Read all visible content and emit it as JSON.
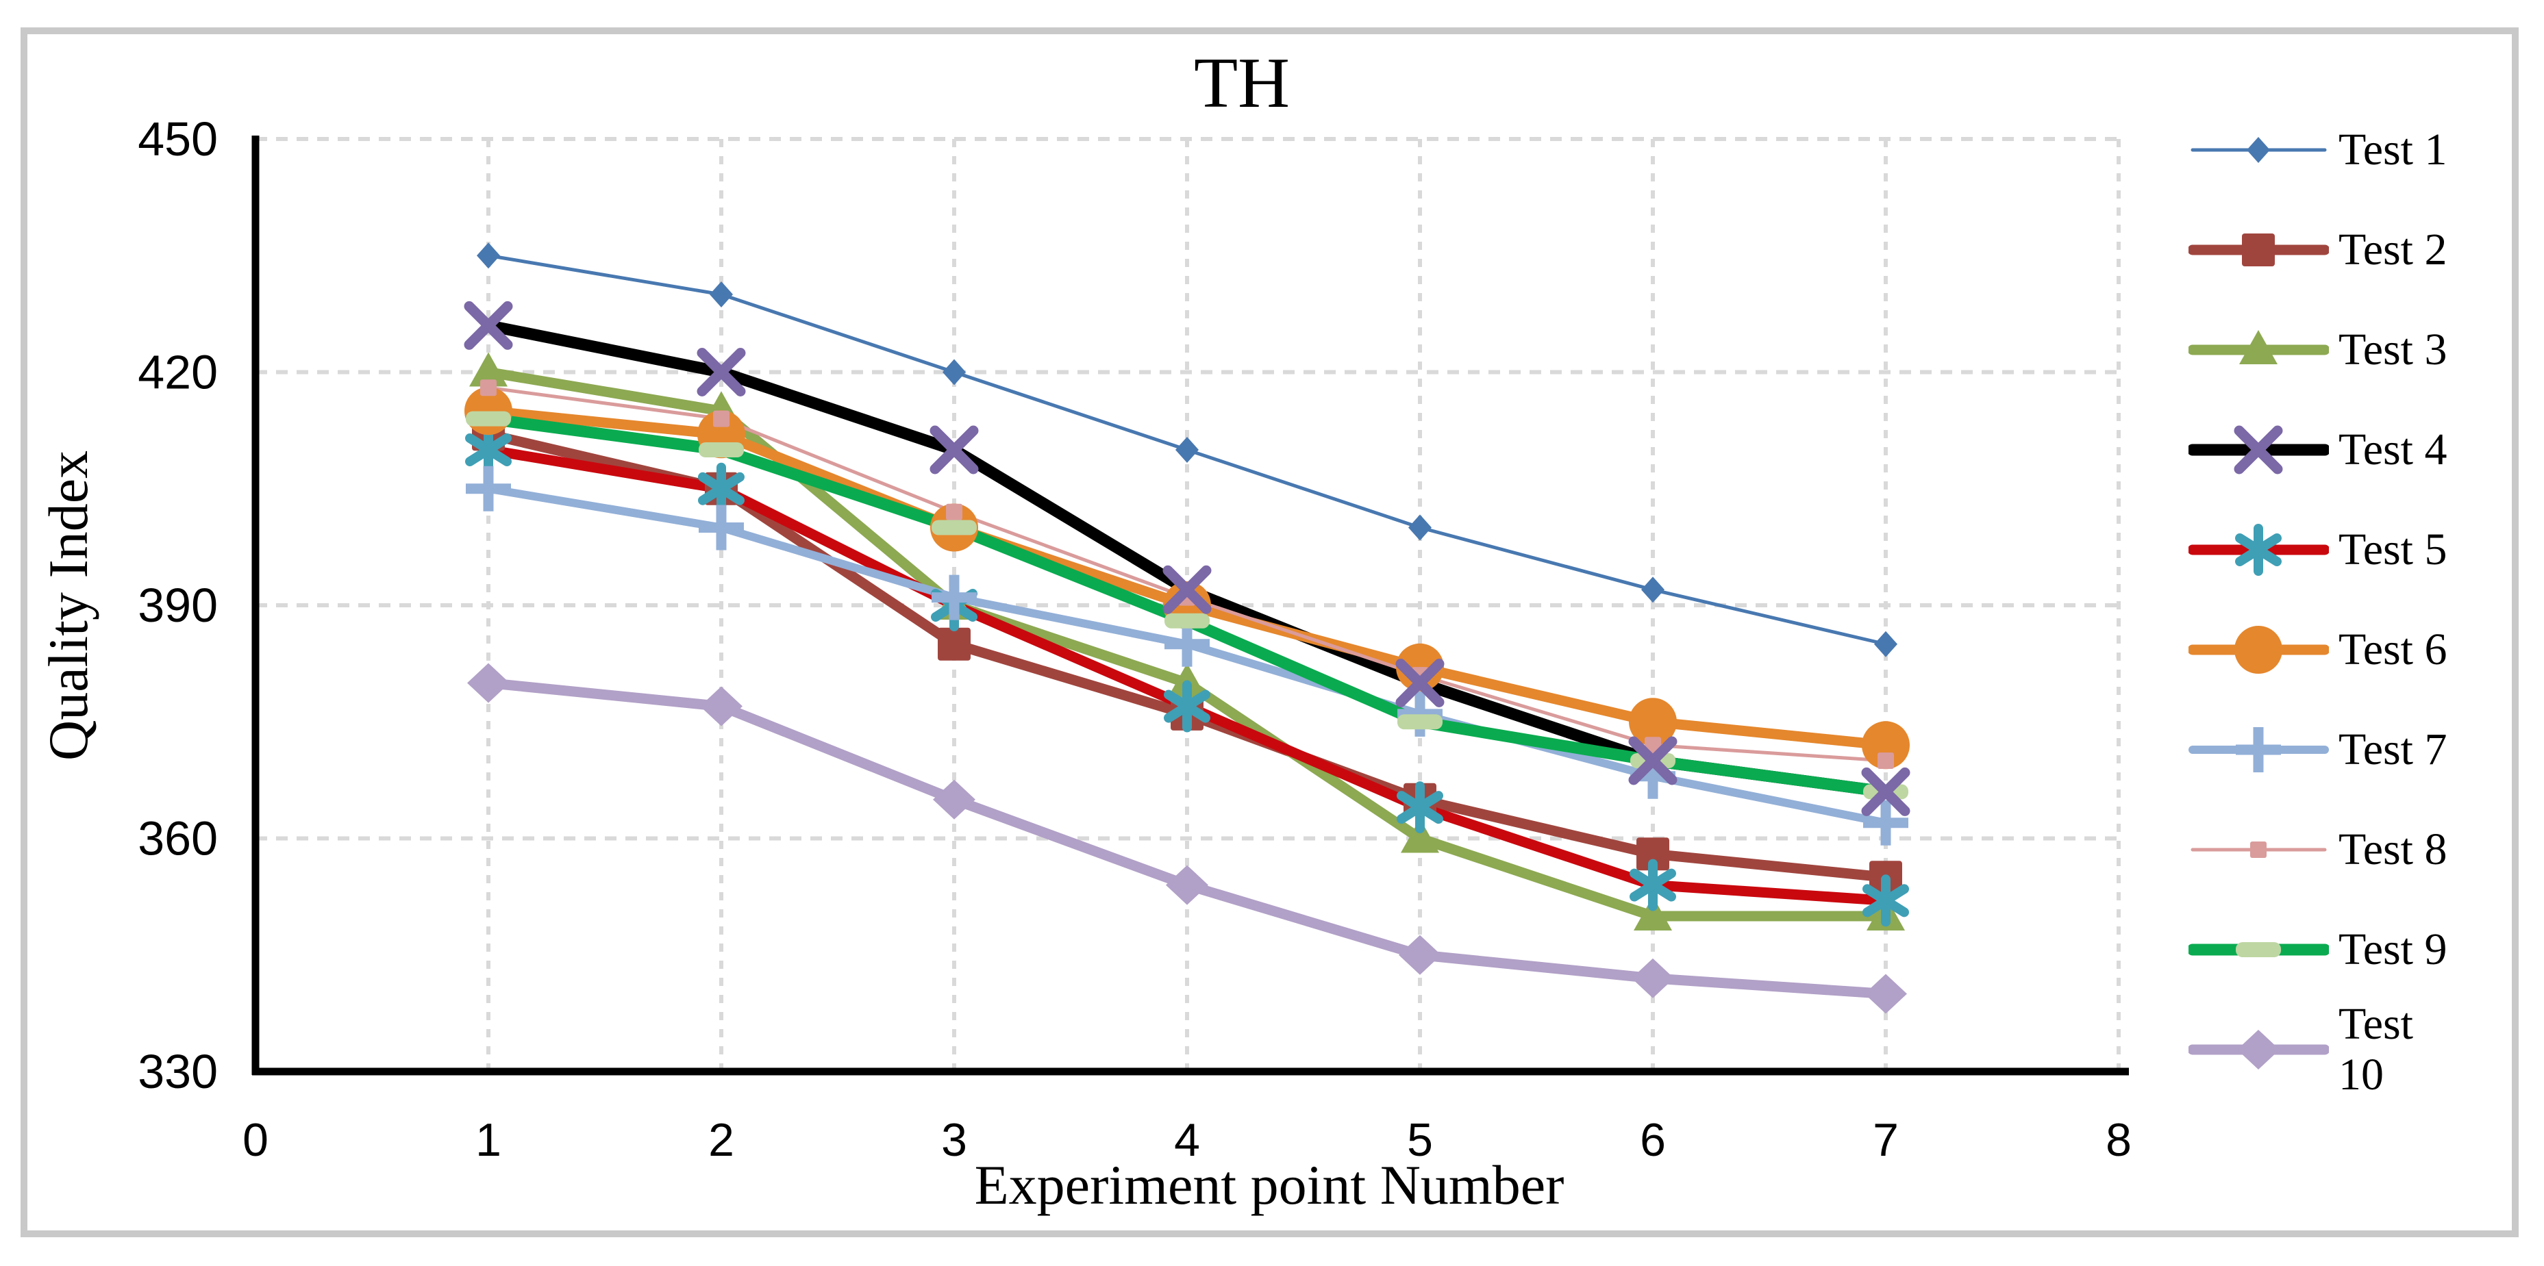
{
  "figure": {
    "title": "TH",
    "x_axis_title": "Experiment point Number",
    "y_axis_title": "Quality Index"
  },
  "chart_data": {
    "type": "line",
    "title": "TH",
    "xlabel": "Experiment point Number",
    "ylabel": "Quality Index",
    "x": [
      1,
      2,
      3,
      4,
      5,
      6,
      7
    ],
    "xlim": [
      0,
      8
    ],
    "ylim": [
      330,
      450
    ],
    "x_ticks": [
      0,
      1,
      2,
      3,
      4,
      5,
      6,
      7,
      8
    ],
    "y_ticks": [
      330,
      360,
      390,
      420,
      450
    ],
    "grid": "dashed horizontal and vertical, light gray",
    "legend_position": "right",
    "axis_color": "#000000",
    "gridline_color": "#d9d9d9",
    "series": [
      {
        "name": "Test 1",
        "color": "#4878b0",
        "marker": "diamond-small",
        "marker_color": "#4878b0",
        "line_width": 5,
        "values": [
          435,
          430,
          420,
          410,
          400,
          392,
          385
        ]
      },
      {
        "name": "Test 2",
        "color": "#a0453e",
        "marker": "square",
        "marker_color": "#a0453e",
        "line_width": 15,
        "values": [
          412,
          405,
          385,
          376,
          365,
          358,
          355
        ]
      },
      {
        "name": "Test 3",
        "color": "#8da952",
        "marker": "triangle",
        "marker_color": "#8da952",
        "line_width": 15,
        "values": [
          420,
          415,
          390,
          380,
          360,
          350,
          350
        ]
      },
      {
        "name": "Test 4",
        "color": "#000000",
        "marker": "x",
        "marker_color": "#7b68a6",
        "line_width": 17,
        "values": [
          426,
          420,
          410,
          392,
          380,
          370,
          366
        ]
      },
      {
        "name": "Test 5",
        "color": "#c9080e",
        "marker": "asterisk",
        "marker_color": "#3f9fb5",
        "line_width": 15,
        "values": [
          410,
          405,
          390,
          377,
          364,
          354,
          352
        ]
      },
      {
        "name": "Test 6",
        "color": "#e5872d",
        "marker": "circle",
        "marker_color": "#e5872d",
        "line_width": 15,
        "values": [
          415,
          412,
          400,
          390,
          382,
          375,
          372
        ]
      },
      {
        "name": "Test 7",
        "color": "#92afd7",
        "marker": "plus",
        "marker_color": "#92afd7",
        "line_width": 12,
        "values": [
          405,
          400,
          391,
          385,
          376,
          368,
          362
        ]
      },
      {
        "name": "Test 8",
        "color": "#da9b9b",
        "marker": "square-small",
        "marker_color": "#da9b9b",
        "line_width": 5,
        "values": [
          418,
          414,
          402,
          391,
          381,
          372,
          370
        ]
      },
      {
        "name": "Test 9",
        "color": "#0aab50",
        "marker": "dash",
        "marker_color": "#bed6a2",
        "line_width": 17,
        "values": [
          414,
          410,
          400,
          388,
          375,
          370,
          366
        ]
      },
      {
        "name": "Test 10",
        "color": "#b1a0c7",
        "marker": "diamond",
        "marker_color": "#b1a0c7",
        "line_width": 15,
        "values": [
          380,
          377,
          365,
          354,
          345,
          342,
          340
        ]
      }
    ]
  }
}
